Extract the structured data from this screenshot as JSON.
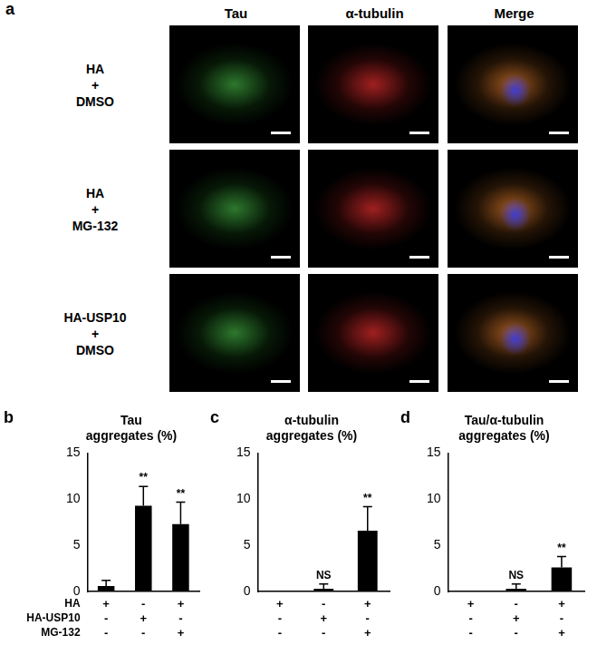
{
  "panel_a": {
    "label": "a",
    "columns": [
      "Tau",
      "α-tubulin",
      "Merge"
    ],
    "rows": [
      [
        "HA",
        "+",
        "DMSO"
      ],
      [
        "HA",
        "+",
        "MG-132"
      ],
      [
        "HA-USP10",
        "+",
        "DMSO"
      ]
    ]
  },
  "condition_rows": [
    "HA",
    "HA-USP10",
    "MG-132"
  ],
  "chart_data": [
    {
      "panel": "b",
      "type": "bar",
      "title": [
        "Tau",
        "aggregates (%)"
      ],
      "categories": [
        [
          "+",
          "-",
          "-"
        ],
        [
          "-",
          "+",
          "-"
        ],
        [
          "+",
          "-",
          "+"
        ]
      ],
      "values": [
        0.6,
        9.3,
        7.3
      ],
      "errors": [
        0.6,
        2.1,
        2.4
      ],
      "significance": [
        null,
        "**",
        "**"
      ],
      "color": "#000000",
      "ylim": [
        0,
        15
      ],
      "yticks": [
        0,
        5,
        10,
        15
      ],
      "grid": false
    },
    {
      "panel": "c",
      "type": "bar",
      "title": [
        "α-tubulin",
        "aggregates (%)"
      ],
      "categories": [
        [
          "+",
          "-",
          "-"
        ],
        [
          "-",
          "+",
          "-"
        ],
        [
          "+",
          "-",
          "+"
        ]
      ],
      "values": [
        0,
        0.3,
        6.6
      ],
      "errors": [
        0,
        0.5,
        2.6
      ],
      "significance": [
        null,
        "NS",
        "**"
      ],
      "color": "#000000",
      "ylim": [
        0,
        15
      ],
      "yticks": [
        0,
        5,
        10,
        15
      ],
      "grid": false
    },
    {
      "panel": "d",
      "type": "bar",
      "title": [
        "Tau/α-tubulin",
        "aggregates (%)"
      ],
      "categories": [
        [
          "+",
          "-",
          "-"
        ],
        [
          "-",
          "+",
          "-"
        ],
        [
          "+",
          "-",
          "+"
        ]
      ],
      "values": [
        0,
        0.3,
        2.6
      ],
      "errors": [
        0,
        0.5,
        1.2
      ],
      "significance": [
        null,
        "NS",
        "**"
      ],
      "color": "#000000",
      "ylim": [
        0,
        15
      ],
      "yticks": [
        0,
        5,
        10,
        15
      ],
      "grid": false
    }
  ]
}
